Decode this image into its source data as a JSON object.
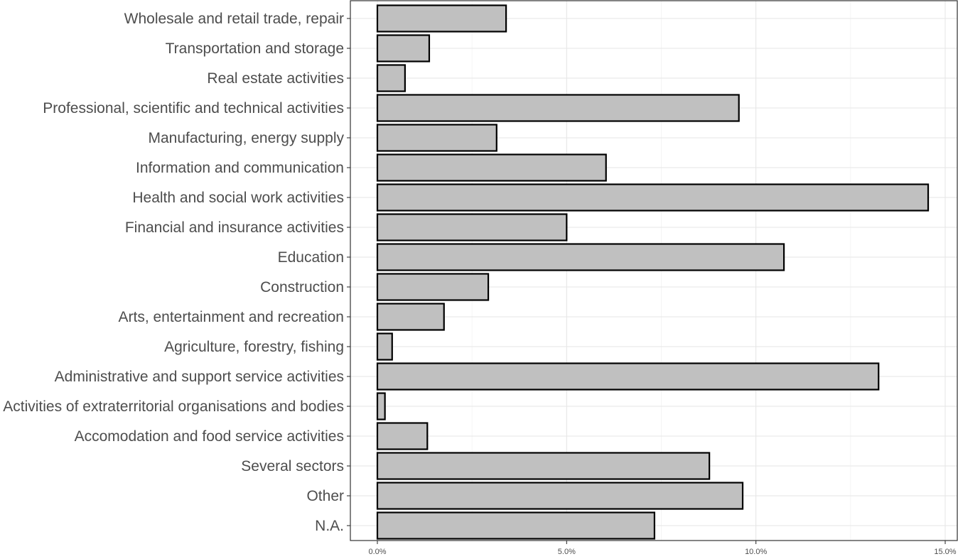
{
  "chart_data": {
    "type": "bar",
    "orientation": "horizontal",
    "title": "",
    "xlabel": "",
    "ylabel": "",
    "xlim": [
      0,
      15
    ],
    "x_ticks": [
      0,
      5,
      10,
      15
    ],
    "x_tick_labels": [
      "0.0%",
      "5.0%",
      "10.0%",
      "15.0%"
    ],
    "grid": true,
    "colors": {
      "bar_fill": "#c0c0c0",
      "bar_stroke": "#000000",
      "grid_major": "#e6e6e6",
      "grid_minor": "#f2f2f2",
      "panel_border": "#333333",
      "label_text": "#4d4d4d"
    },
    "categories": [
      "Wholesale and retail trade, repair",
      "Transportation and storage",
      "Real estate activities",
      "Professional, scientific and technical activities",
      "Manufacturing, energy supply",
      "Information and communication",
      "Health and social work activities",
      "Financial and insurance activities",
      "Education",
      "Construction",
      "Arts, entertainment and recreation",
      "Agriculture, forestry, fishing",
      "Administrative and support service activities",
      "Activities of extraterritorial organisations and bodies",
      "Accomodation and food service activities",
      "Several sectors",
      "Other",
      "N.A."
    ],
    "values": [
      3.4,
      1.37,
      0.73,
      9.55,
      3.15,
      6.04,
      14.55,
      5.0,
      10.74,
      2.93,
      1.76,
      0.39,
      13.24,
      0.2,
      1.32,
      8.77,
      9.65,
      7.32
    ]
  }
}
